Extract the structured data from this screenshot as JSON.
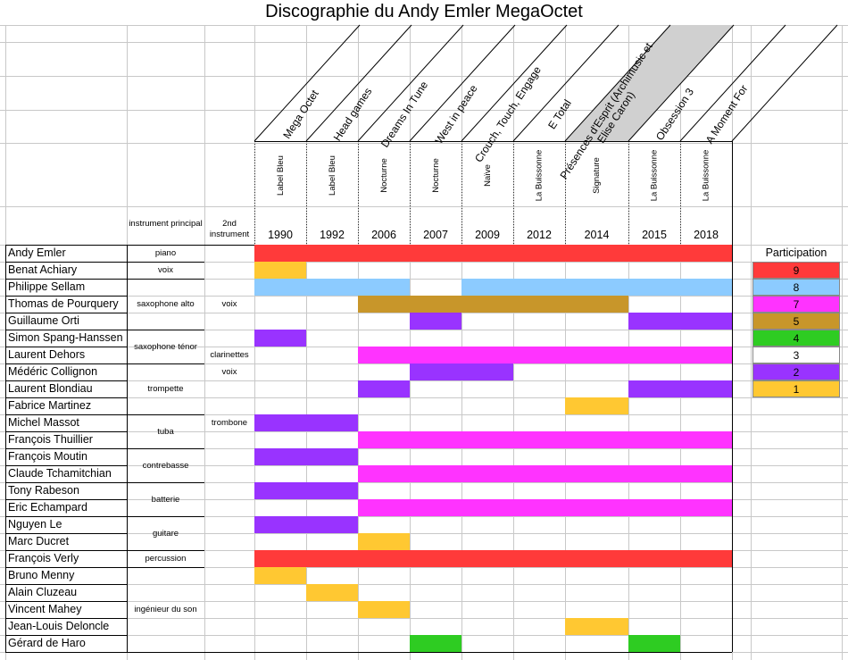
{
  "title": "Discographie du Andy Emler MegaOctet",
  "colors": {
    "9": "#ff3a3a",
    "8": "#8ccbff",
    "7": "#ff33ff",
    "5": "#c8962a",
    "4": "#2ecc22",
    "3": "#ffffff",
    "2": "#9933ff",
    "1": "#ffc832",
    "grid": "#c8c8c8"
  },
  "headers": {
    "instrument_principal": "instrument principal",
    "second_instrument": "2nd instrument"
  },
  "albums": [
    {
      "title": "Mega Octet",
      "label": "Label Bleu",
      "year": "1990",
      "shaded": false
    },
    {
      "title": "Head games",
      "label": "Label Bleu",
      "year": "1992",
      "shaded": false
    },
    {
      "title": "Dreams In Tune",
      "label": "Nocturne",
      "year": "2006",
      "shaded": false
    },
    {
      "title": "West in peace",
      "label": "Nocturne",
      "year": "2007",
      "shaded": false
    },
    {
      "title": "Crouch, Touch, Engage",
      "label": "Naïve",
      "year": "2009",
      "shaded": false
    },
    {
      "title": "E Total",
      "label": "La Buissonne",
      "year": "2012",
      "shaded": false
    },
    {
      "title": "Présences d'Esprit (Archimusic et Elise Caron)",
      "label": "Signature",
      "year": "2014",
      "shaded": true
    },
    {
      "title": "Obsession 3",
      "label": "La Buissonne",
      "year": "2015",
      "shaded": false
    },
    {
      "title": "A Moment For",
      "label": "La Buissonne",
      "year": "2018",
      "shaded": false
    }
  ],
  "musicians": [
    {
      "name": "Andy Emler",
      "cells": [
        9,
        9,
        9,
        9,
        9,
        9,
        9,
        9,
        9
      ]
    },
    {
      "name": "Benat Achiary",
      "cells": [
        1,
        0,
        0,
        0,
        0,
        0,
        0,
        0,
        0
      ]
    },
    {
      "name": "Philippe Sellam",
      "cells": [
        8,
        8,
        8,
        0,
        8,
        8,
        8,
        8,
        8
      ]
    },
    {
      "name": "Thomas de Pourquery",
      "cells": [
        0,
        0,
        5,
        5,
        5,
        5,
        5,
        0,
        0
      ]
    },
    {
      "name": "Guillaume Orti",
      "cells": [
        0,
        0,
        0,
        2,
        0,
        0,
        0,
        2,
        2
      ]
    },
    {
      "name": "Simon Spang-Hanssen",
      "cells": [
        2,
        0,
        0,
        0,
        0,
        0,
        0,
        0,
        0
      ]
    },
    {
      "name": "Laurent Dehors",
      "cells": [
        0,
        0,
        7,
        7,
        7,
        7,
        7,
        7,
        7
      ]
    },
    {
      "name": "Médéric Collignon",
      "cells": [
        0,
        0,
        0,
        2,
        2,
        0,
        0,
        0,
        0
      ]
    },
    {
      "name": "Laurent Blondiau",
      "cells": [
        0,
        0,
        2,
        0,
        0,
        0,
        0,
        2,
        2
      ]
    },
    {
      "name": "Fabrice Martinez",
      "cells": [
        0,
        0,
        0,
        0,
        0,
        0,
        1,
        0,
        0
      ]
    },
    {
      "name": "Michel Massot",
      "cells": [
        2,
        2,
        0,
        0,
        0,
        0,
        0,
        0,
        0
      ]
    },
    {
      "name": "François Thuillier",
      "cells": [
        0,
        0,
        7,
        7,
        7,
        7,
        7,
        7,
        7
      ]
    },
    {
      "name": "François Moutin",
      "cells": [
        2,
        2,
        0,
        0,
        0,
        0,
        0,
        0,
        0
      ]
    },
    {
      "name": "Claude Tchamitchian",
      "cells": [
        0,
        0,
        7,
        7,
        7,
        7,
        7,
        7,
        7
      ]
    },
    {
      "name": "Tony Rabeson",
      "cells": [
        2,
        2,
        0,
        0,
        0,
        0,
        0,
        0,
        0
      ]
    },
    {
      "name": "Eric Echampard",
      "cells": [
        0,
        0,
        7,
        7,
        7,
        7,
        7,
        7,
        7
      ]
    },
    {
      "name": "Nguyen Le",
      "cells": [
        2,
        2,
        0,
        0,
        0,
        0,
        0,
        0,
        0
      ]
    },
    {
      "name": "Marc Ducret",
      "cells": [
        0,
        0,
        1,
        0,
        0,
        0,
        0,
        0,
        0
      ]
    },
    {
      "name": "François Verly",
      "cells": [
        9,
        9,
        9,
        9,
        9,
        9,
        9,
        9,
        9
      ]
    },
    {
      "name": "Bruno Menny",
      "cells": [
        1,
        0,
        0,
        0,
        0,
        0,
        0,
        0,
        0
      ]
    },
    {
      "name": "Alain Cluzeau",
      "cells": [
        0,
        1,
        0,
        0,
        0,
        0,
        0,
        0,
        0
      ]
    },
    {
      "name": "Vincent Mahey",
      "cells": [
        0,
        0,
        1,
        0,
        0,
        0,
        0,
        0,
        0
      ]
    },
    {
      "name": "Jean-Louis Deloncle",
      "cells": [
        0,
        0,
        0,
        0,
        0,
        0,
        1,
        0,
        0
      ]
    },
    {
      "name": "Gérard de Haro",
      "cells": [
        0,
        0,
        0,
        4,
        0,
        0,
        0,
        4,
        0
      ]
    }
  ],
  "instrument_groups": [
    {
      "label": "piano",
      "from": 0,
      "to": 0
    },
    {
      "label": "voix",
      "from": 1,
      "to": 1
    },
    {
      "label": "saxophone alto",
      "from": 2,
      "to": 4
    },
    {
      "label": "saxophone ténor",
      "from": 5,
      "to": 6
    },
    {
      "label": "trompette",
      "from": 7,
      "to": 9
    },
    {
      "label": "tuba",
      "from": 10,
      "to": 11
    },
    {
      "label": "contrebasse",
      "from": 12,
      "to": 13
    },
    {
      "label": "batterie",
      "from": 14,
      "to": 15
    },
    {
      "label": "guitare",
      "from": 16,
      "to": 17
    },
    {
      "label": "percussion",
      "from": 18,
      "to": 18
    },
    {
      "label": "ingénieur du son",
      "from": 19,
      "to": 23
    }
  ],
  "second_instruments": [
    {
      "label": "voix",
      "row": 3
    },
    {
      "label": "clarinettes",
      "row": 6
    },
    {
      "label": "voix",
      "row": 7
    },
    {
      "label": "trombone",
      "row": 10
    }
  ],
  "legend": {
    "title": "Participation",
    "items": [
      {
        "value": "9",
        "key": "9"
      },
      {
        "value": "8",
        "key": "8"
      },
      {
        "value": "7",
        "key": "7"
      },
      {
        "value": "5",
        "key": "5"
      },
      {
        "value": "4",
        "key": "4"
      },
      {
        "value": "3",
        "key": "3"
      },
      {
        "value": "2",
        "key": "2"
      },
      {
        "value": "1",
        "key": "1"
      }
    ]
  }
}
